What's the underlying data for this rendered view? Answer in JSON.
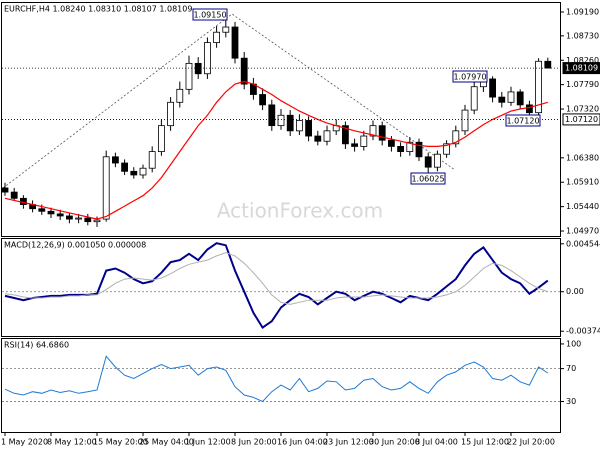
{
  "chart_data": [
    {
      "type": "candlestick",
      "title": "EURCHF,H4 1.08240 1.08310 1.08107 1.08109",
      "watermark": "ActionForex.com",
      "categories": [
        "1 May 2020",
        null,
        null,
        null,
        null,
        "8 May 12:00",
        null,
        null,
        null,
        null,
        "15 May 20:00",
        null,
        null,
        null,
        null,
        "25 May 04:00",
        null,
        null,
        null,
        null,
        "1 Jun 12:00",
        null,
        null,
        null,
        null,
        "8 Jun 20:00",
        null,
        null,
        null,
        null,
        "16 Jun 04:00",
        null,
        null,
        null,
        null,
        "23 Jun 12:00",
        null,
        null,
        null,
        null,
        "30 Jun 20:00",
        null,
        null,
        null,
        null,
        "8 Jul 04:00",
        null,
        null,
        null,
        null,
        "15 Jul 12:00",
        null,
        null,
        null,
        null,
        "22 Jul 20:00",
        null,
        null,
        null,
        null
      ],
      "open": [
        1.058,
        1.0572,
        1.056,
        1.0548,
        1.054,
        1.0535,
        1.053,
        1.0526,
        1.052,
        1.0522,
        1.0515,
        1.052,
        1.064,
        1.0628,
        1.0612,
        1.0605,
        1.0618,
        1.065,
        1.07,
        1.0745,
        1.077,
        1.082,
        1.08,
        1.086,
        1.088,
        1.089,
        1.083,
        1.078,
        1.076,
        1.074,
        1.07,
        1.072,
        1.069,
        1.071,
        1.068,
        1.067,
        1.069,
        1.07,
        1.0665,
        1.066,
        1.068,
        1.07,
        1.0672,
        1.066,
        1.065,
        1.0668,
        1.064,
        1.062,
        1.0645,
        1.0665,
        1.069,
        1.073,
        1.0775,
        1.079,
        1.0755,
        1.0745,
        1.0765,
        1.074,
        1.0725,
        1.0824
      ],
      "high": [
        1.059,
        1.058,
        1.0566,
        1.0556,
        1.0548,
        1.0542,
        1.0538,
        1.0532,
        1.053,
        1.053,
        1.0525,
        1.0652,
        1.0648,
        1.0635,
        1.062,
        1.0625,
        1.066,
        1.0712,
        1.0755,
        1.0785,
        1.0835,
        1.0832,
        1.087,
        1.0892,
        1.0915,
        1.09,
        1.0842,
        1.0792,
        1.0772,
        1.075,
        1.0732,
        1.073,
        1.0722,
        1.0718,
        1.069,
        1.07,
        1.0712,
        1.0708,
        1.0675,
        1.069,
        1.071,
        1.0708,
        1.068,
        1.0668,
        1.0678,
        1.0675,
        1.0648,
        1.0652,
        1.0672,
        1.07,
        1.074,
        1.0785,
        1.0797,
        1.0795,
        1.0765,
        1.0775,
        1.077,
        1.0748,
        1.083,
        1.0831
      ],
      "low": [
        1.0565,
        1.0555,
        1.054,
        1.0533,
        1.0528,
        1.0522,
        1.0518,
        1.0512,
        1.0512,
        1.0508,
        1.0505,
        1.0515,
        1.062,
        1.0605,
        1.0598,
        1.0598,
        1.061,
        1.0642,
        1.069,
        1.0735,
        1.076,
        1.079,
        1.079,
        1.085,
        1.087,
        1.082,
        1.077,
        1.075,
        1.073,
        1.069,
        1.0692,
        1.068,
        1.0682,
        1.067,
        1.0662,
        1.0662,
        1.0682,
        1.0655,
        1.065,
        1.0652,
        1.0672,
        1.0662,
        1.065,
        1.064,
        1.0642,
        1.0632,
        1.06025,
        1.0612,
        1.0638,
        1.0658,
        1.0682,
        1.0722,
        1.0765,
        1.0745,
        1.0735,
        1.0738,
        1.0732,
        1.0712,
        1.0718,
        1.08107
      ],
      "close": [
        1.0572,
        1.056,
        1.0548,
        1.054,
        1.0535,
        1.053,
        1.0526,
        1.052,
        1.0522,
        1.0515,
        1.0518,
        1.064,
        1.0628,
        1.0612,
        1.0605,
        1.0618,
        1.065,
        1.07,
        1.0745,
        1.077,
        1.082,
        1.08,
        1.086,
        1.088,
        1.089,
        1.083,
        1.078,
        1.076,
        1.074,
        1.07,
        1.072,
        1.069,
        1.071,
        1.068,
        1.067,
        1.069,
        1.07,
        1.0665,
        1.066,
        1.068,
        1.07,
        1.0672,
        1.066,
        1.065,
        1.0668,
        1.064,
        1.062,
        1.0645,
        1.0665,
        1.069,
        1.073,
        1.0775,
        1.079,
        1.0755,
        1.0745,
        1.0765,
        1.074,
        1.0725,
        1.0824,
        1.08109
      ],
      "up_color": "#ffffff",
      "down_color": "#000000",
      "series": [
        {
          "color": "#ff0000",
          "values": [
            1.056,
            1.0556,
            1.0552,
            1.0548,
            1.0544,
            1.054,
            1.0536,
            1.0532,
            1.0528,
            1.0524,
            1.052,
            1.0525,
            1.0535,
            1.0545,
            1.0555,
            1.0565,
            1.058,
            1.06,
            1.0625,
            1.065,
            1.0675,
            1.07,
            1.072,
            1.0745,
            1.0765,
            1.078,
            1.0785,
            1.078,
            1.077,
            1.076,
            1.0748,
            1.0738,
            1.0728,
            1.072,
            1.0712,
            1.0705,
            1.07,
            1.0695,
            1.069,
            1.0686,
            1.0682,
            1.0678,
            1.0674,
            1.067,
            1.0666,
            1.0662,
            1.066,
            1.066,
            1.0662,
            1.0668,
            1.0678,
            1.069,
            1.0702,
            1.0712,
            1.072,
            1.0728,
            1.0732,
            1.0735,
            1.074,
            1.0745
          ]
        }
      ],
      "ylim": [
        1.04874,
        1.09363
      ],
      "yticks": [
        {
          "value": 1.0919,
          "label": "1.09190"
        },
        {
          "value": 1.0873,
          "label": "1.08730"
        },
        {
          "value": 1.0826,
          "label": "1.08260"
        },
        {
          "value": 1.0779,
          "label": "1.07790"
        },
        {
          "value": 1.0732,
          "label": "1.07320"
        },
        {
          "value": 1.0638,
          "label": "1.06380"
        },
        {
          "value": 1.0591,
          "label": "1.05910"
        },
        {
          "value": 1.0544,
          "label": "1.05440"
        },
        {
          "value": 1.0497,
          "label": "1.04970"
        }
      ],
      "hlines": [
        1.08109,
        {
          "value": 1.0712,
          "label": "1.07120"
        }
      ],
      "annotations": [
        "1.09150",
        "1.07970",
        "1.07120",
        "1.06025"
      ]
    },
    {
      "type": "line",
      "title": "MACD(12,26,9) 0.001050 0.000008",
      "series": [
        {
          "color": "#00008b",
          "values": [
            -0.0004,
            -0.0006,
            -0.0008,
            -0.0006,
            -0.0005,
            -0.0004,
            -0.0004,
            -0.0003,
            -0.0003,
            -0.0003,
            -0.0002,
            0.002,
            0.0022,
            0.0018,
            0.0012,
            0.0008,
            0.001,
            0.0018,
            0.0028,
            0.003,
            0.0036,
            0.003,
            0.004,
            0.0046,
            0.0044,
            0.002,
            0.0,
            -0.002,
            -0.0034,
            -0.0028,
            -0.0015,
            -0.0008,
            -0.0002,
            -0.0005,
            -0.0012,
            -0.0006,
            0.0,
            -0.0002,
            -0.0008,
            -0.0004,
            0.0,
            -0.0002,
            -0.0006,
            -0.001,
            -0.0004,
            -0.0006,
            -0.0008,
            -0.0002,
            0.0005,
            0.0012,
            0.0025,
            0.0036,
            0.0042,
            0.003,
            0.0018,
            0.0012,
            0.0008,
            -0.0002,
            0.0004,
            0.00105
          ]
        },
        {
          "color": "#b0b0b0",
          "values": [
            -0.0002,
            -0.0003,
            -0.0005,
            -0.0006,
            -0.0006,
            -0.0005,
            -0.0005,
            -0.0004,
            -0.0004,
            -0.0003,
            -0.0003,
            0.0002,
            0.0008,
            0.0012,
            0.0013,
            0.0012,
            0.0011,
            0.0013,
            0.0017,
            0.0022,
            0.0026,
            0.0028,
            0.003,
            0.0034,
            0.0037,
            0.0034,
            0.0027,
            0.0018,
            0.0008,
            -0.0003,
            -0.001,
            -0.0012,
            -0.001,
            -0.0008,
            -0.0008,
            -0.0008,
            -0.0006,
            -0.0005,
            -0.0005,
            -0.0005,
            -0.0004,
            -0.0003,
            -0.0004,
            -0.0005,
            -0.0006,
            -0.0006,
            -0.0006,
            -0.0005,
            -0.0003,
            0.0,
            0.0006,
            0.0014,
            0.0022,
            0.0027,
            0.0025,
            0.002,
            0.0014,
            0.0008,
            0.0003,
            8e-06
          ]
        }
      ],
      "ylim": [
        -0.0042,
        0.005
      ],
      "yticks": [
        0.004544,
        {
          "value": 0,
          "label": "0.00"
        },
        -0.003745
      ],
      "levels": [
        0
      ]
    },
    {
      "type": "line",
      "title": "RSI(14) 64.6860",
      "series": [
        {
          "color": "#1e7bd8",
          "values": [
            45,
            40,
            38,
            42,
            40,
            44,
            41,
            43,
            40,
            42,
            44,
            85,
            72,
            62,
            58,
            64,
            70,
            75,
            70,
            72,
            74,
            62,
            70,
            72,
            68,
            48,
            38,
            35,
            30,
            42,
            50,
            44,
            58,
            42,
            46,
            55,
            54,
            44,
            46,
            56,
            58,
            48,
            44,
            46,
            54,
            46,
            40,
            54,
            62,
            66,
            74,
            78,
            72,
            58,
            56,
            62,
            54,
            50,
            72,
            64.686
          ]
        }
      ],
      "ylim": [
        -7,
        106
      ],
      "yticks": [
        100,
        70,
        30
      ],
      "levels": [
        70,
        30
      ]
    }
  ]
}
